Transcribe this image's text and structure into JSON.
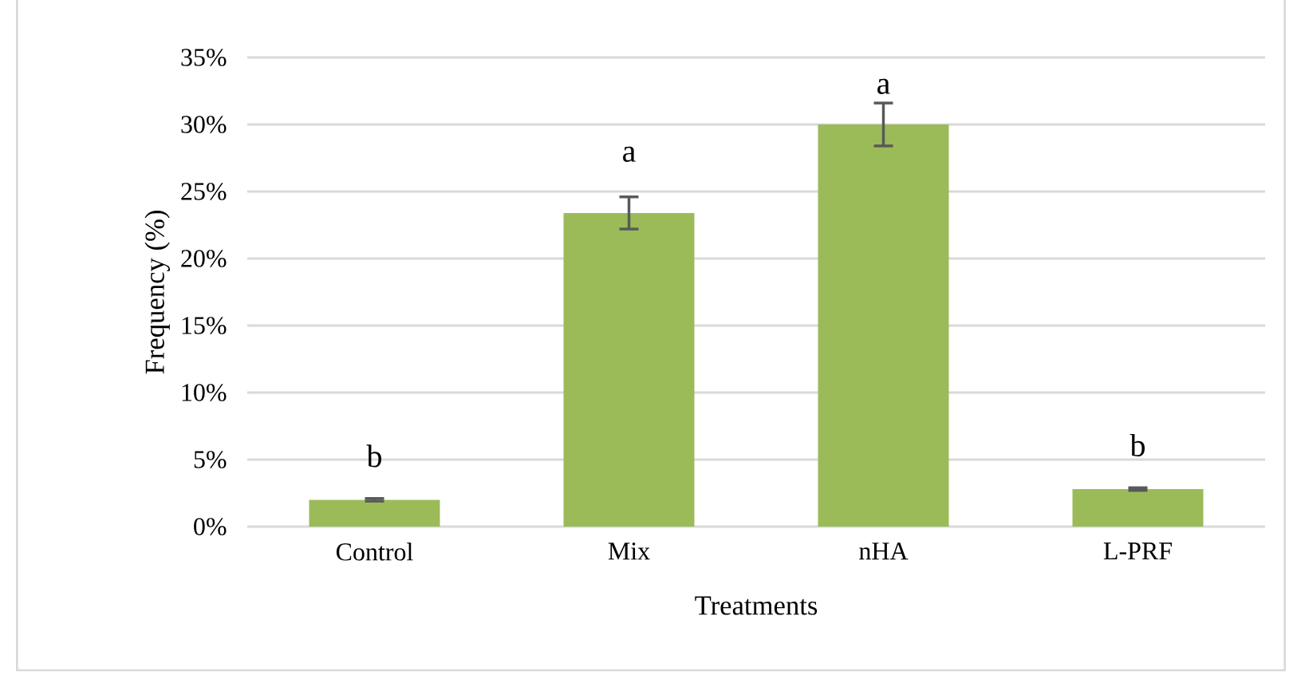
{
  "chart_data": {
    "type": "bar",
    "xlabel": "Treatments",
    "ylabel": "Frequency (%)",
    "categories": [
      "Control",
      "Mix",
      "nHA",
      "L-PRF"
    ],
    "values": [
      2.0,
      23.4,
      30.0,
      2.8
    ],
    "errors": [
      0.1,
      1.2,
      1.6,
      0.1
    ],
    "color": "#9bbb59",
    "ylim": [
      0,
      35
    ],
    "yticks": [
      {
        "value": 0,
        "label": "0%"
      },
      {
        "value": 5,
        "label": "5%"
      },
      {
        "value": 10,
        "label": "10%"
      },
      {
        "value": 15,
        "label": "15%"
      },
      {
        "value": 20,
        "label": "20%"
      },
      {
        "value": 25,
        "label": "25%"
      },
      {
        "value": 30,
        "label": "30%"
      },
      {
        "value": 35,
        "label": "35%"
      }
    ],
    "grid": "y",
    "annotations": [
      "b",
      "a",
      "a",
      "b"
    ]
  }
}
